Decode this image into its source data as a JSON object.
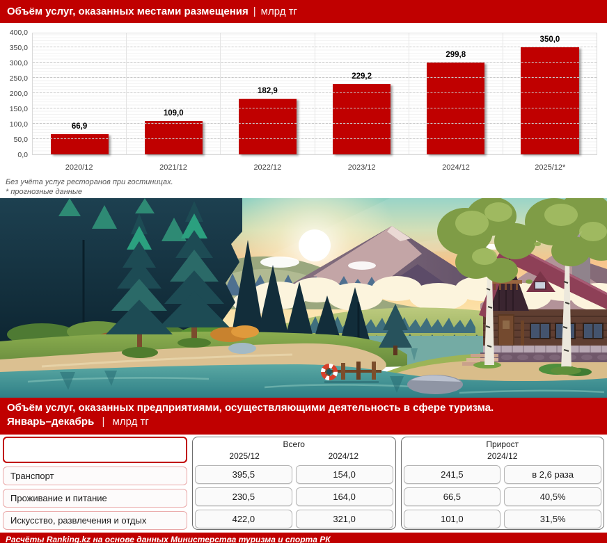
{
  "palette": {
    "accent_red": "#c00000",
    "bar_red": "#c00000"
  },
  "header1": {
    "title": "Объём услуг, оказанных местами размещения",
    "separator": "|",
    "unit": "млрд тг"
  },
  "chart_data": {
    "type": "bar",
    "title": "Объём услуг, оказанных местами размещения, млрд тг",
    "categories": [
      "2020/12",
      "2021/12",
      "2022/12",
      "2023/12",
      "2024/12",
      "2025/12*"
    ],
    "values": [
      66.9,
      109.0,
      182.9,
      229.2,
      299.8,
      350.0
    ],
    "value_labels": [
      "66,9",
      "109,0",
      "182,9",
      "229,2",
      "299,8",
      "350,0"
    ],
    "ylim": [
      0,
      400
    ],
    "ytick_step": 50,
    "yticks": [
      "0,0",
      "50,0",
      "100,0",
      "150,0",
      "200,0",
      "250,0",
      "300,0",
      "350,0",
      "400,0"
    ],
    "bar_color": "#c00000",
    "grid": "minor solid + major dashed horizontal",
    "legend": false
  },
  "footnotes": [
    "Без учёта услуг ресторанов при гостиницах.",
    "* прогнозные данные"
  ],
  "illustration": {
    "alt": "lake with pier and lifebuoy, pine forest, mountains and wooden cabin at sunset"
  },
  "header2": {
    "title_line1": "Объём услуг, оказанных предприятиями, осуществляющими деятельность в сфере туризма.",
    "title_line2_bold": "Январь–декабрь",
    "separator": "|",
    "unit": "млрд тг"
  },
  "table": {
    "groups": [
      {
        "label": "Всего",
        "col_headers": [
          "2025/12",
          "2024/12"
        ]
      },
      {
        "label": "Прирост",
        "col_headers": [
          "2024/12"
        ]
      }
    ],
    "rows": [
      {
        "label": "Транспорт",
        "values": [
          "395,5",
          "154,0",
          "241,5",
          "в 2,6 раза"
        ]
      },
      {
        "label": "Проживание и питание",
        "values": [
          "230,5",
          "164,0",
          "66,5",
          "40,5%"
        ]
      },
      {
        "label": "Искусство, развлечения и отдых",
        "values": [
          "422,0",
          "321,0",
          "101,0",
          "31,5%"
        ]
      }
    ]
  },
  "footer": {
    "text": "Расчёты Ranking.kz на основе данных Министерства туризма и спорта РК"
  }
}
